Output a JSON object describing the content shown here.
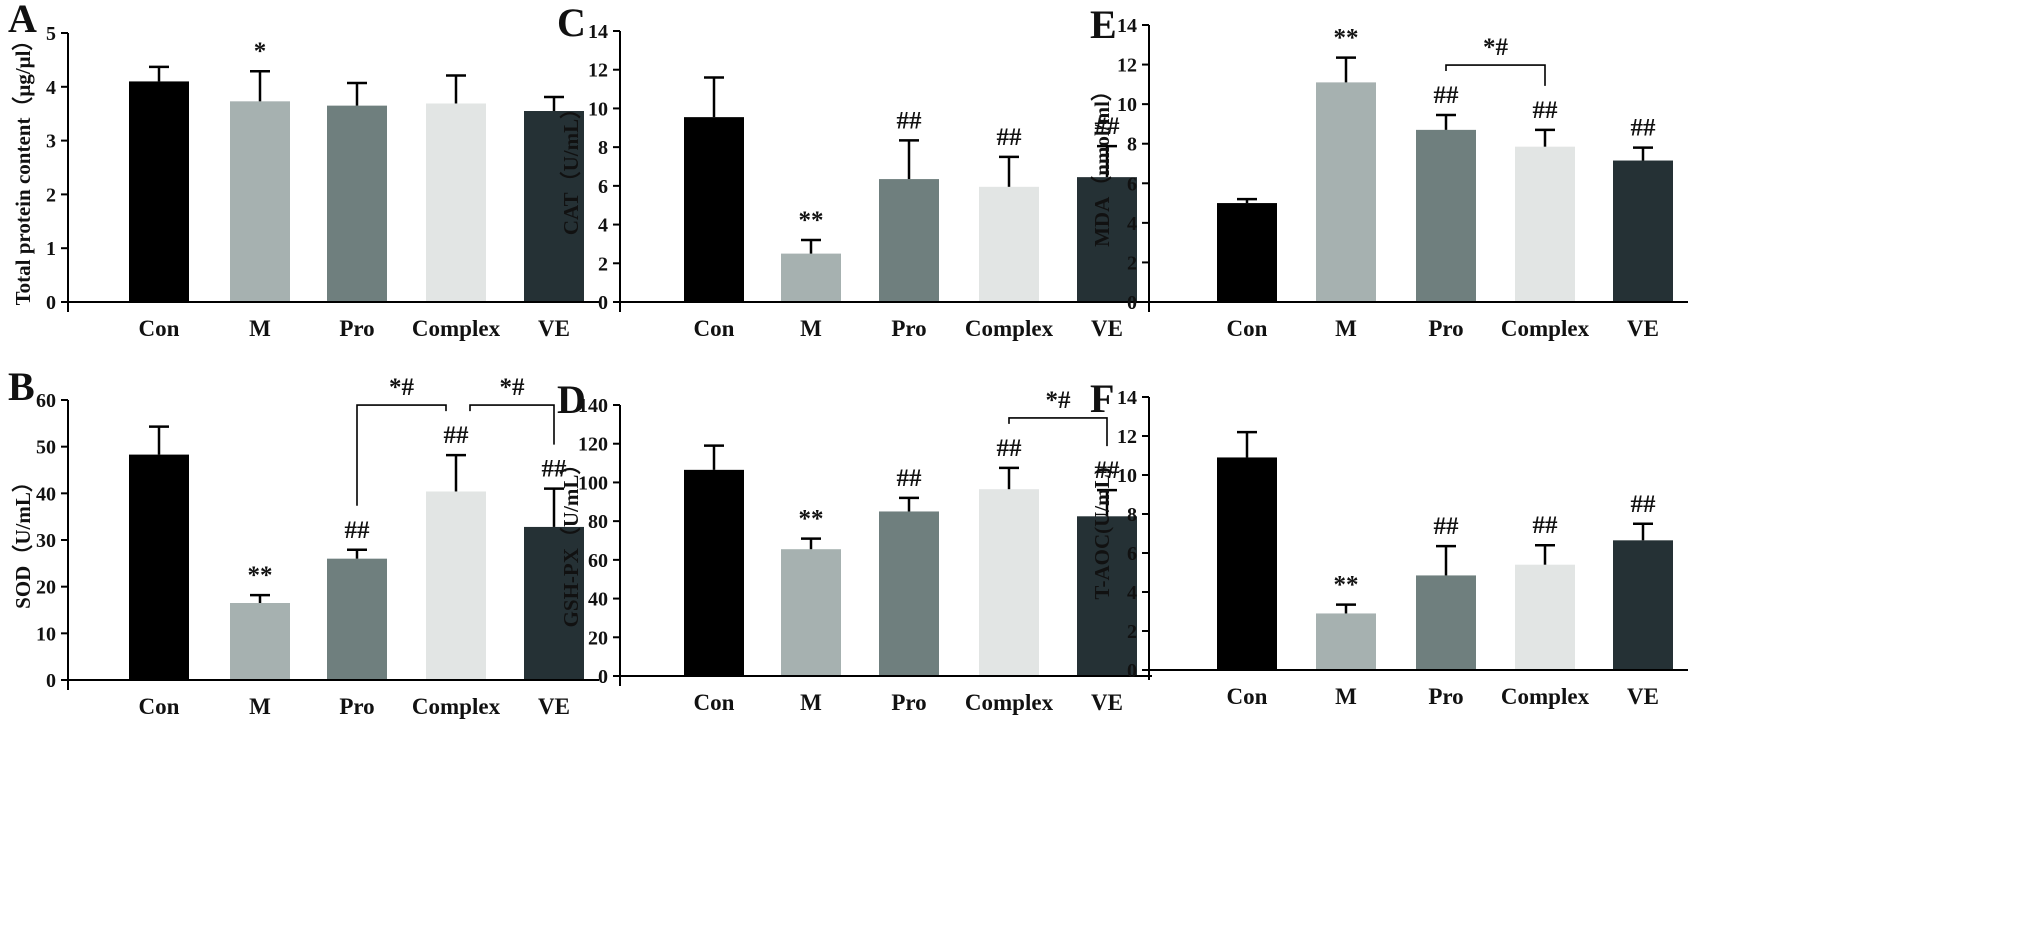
{
  "colors": [
    "#000000",
    "#a6b1b0",
    "#6f7f7e",
    "#e2e5e4",
    "#253135"
  ],
  "chart_data": [
    {
      "type": "bar",
      "letter": "A",
      "ylabel": "Total protein content（μg/μl）",
      "categories": [
        "Con",
        "M",
        "Pro",
        "Complex",
        "VE"
      ],
      "values": [
        4.1,
        3.73,
        3.65,
        3.69,
        3.55
      ],
      "errors": [
        0.27,
        0.56,
        0.42,
        0.52,
        0.26
      ],
      "labels": [
        "",
        "*",
        "",
        "",
        ""
      ],
      "ylim": [
        0,
        5
      ],
      "yticks": [
        0,
        1,
        2,
        3,
        4,
        5
      ],
      "brackets": []
    },
    {
      "type": "bar",
      "letter": "B",
      "ylabel": "SOD（U/mL）",
      "categories": [
        "Con",
        "M",
        "Pro",
        "Complex",
        "VE"
      ],
      "values": [
        48.3,
        16.5,
        26.0,
        40.4,
        32.8
      ],
      "errors": [
        6.0,
        1.7,
        1.9,
        7.8,
        8.2
      ],
      "labels": [
        "",
        "**",
        "##",
        "##",
        "##"
      ],
      "ylim": [
        0,
        60
      ],
      "yticks": [
        0,
        10,
        20,
        30,
        40,
        50,
        60
      ],
      "brackets": [
        {
          "from": 2,
          "to": 3,
          "label": "*#"
        },
        {
          "from": 3,
          "to": 4,
          "label": "*#"
        }
      ]
    },
    {
      "type": "bar",
      "letter": "C",
      "ylabel": "CAT（U/mL）",
      "categories": [
        "Con",
        "M",
        "Pro",
        "Complex",
        "VE"
      ],
      "values": [
        9.55,
        2.5,
        6.35,
        5.95,
        6.45
      ],
      "errors": [
        2.05,
        0.7,
        2.0,
        1.55,
        1.6
      ],
      "labels": [
        "",
        "**",
        "##",
        "##",
        "##"
      ],
      "ylim": [
        0,
        14
      ],
      "yticks": [
        0,
        2,
        4,
        6,
        8,
        10,
        12,
        14
      ],
      "brackets": []
    },
    {
      "type": "bar",
      "letter": "D",
      "ylabel": "GSH-PX（U/mL）",
      "categories": [
        "Con",
        "M",
        "Pro",
        "Complex",
        "VE"
      ],
      "values": [
        106.5,
        65.5,
        85.0,
        96.5,
        82.5
      ],
      "errors": [
        12.5,
        5.5,
        7.0,
        11.0,
        13.5
      ],
      "labels": [
        "",
        "**",
        "##",
        "##",
        "##"
      ],
      "ylim": [
        0,
        140
      ],
      "yticks": [
        0,
        20,
        40,
        60,
        80,
        100,
        120,
        140
      ],
      "brackets": [
        {
          "from": 3,
          "to": 4,
          "label": "*#"
        }
      ]
    },
    {
      "type": "bar",
      "letter": "E",
      "ylabel": "MDA（nmol/ml）",
      "categories": [
        "Con",
        "M",
        "Pro",
        "Complex",
        "VE"
      ],
      "values": [
        5.0,
        11.1,
        8.7,
        7.85,
        7.15
      ],
      "errors": [
        0.2,
        1.25,
        0.75,
        0.85,
        0.65
      ],
      "labels": [
        "",
        "**",
        "##",
        "##",
        "##"
      ],
      "ylim": [
        0,
        14
      ],
      "yticks": [
        0,
        2,
        4,
        6,
        8,
        10,
        12,
        14
      ],
      "brackets": [
        {
          "from": 2,
          "to": 3,
          "label": "*#"
        }
      ]
    },
    {
      "type": "bar",
      "letter": "F",
      "ylabel": "T-AOC(U/mL)",
      "categories": [
        "Con",
        "M",
        "Pro",
        "Complex",
        "VE"
      ],
      "values": [
        10.9,
        2.9,
        4.85,
        5.4,
        6.65
      ],
      "errors": [
        1.3,
        0.45,
        1.5,
        1.0,
        0.85
      ],
      "labels": [
        "",
        "**",
        "##",
        "##",
        "##"
      ],
      "ylim": [
        0,
        14
      ],
      "yticks": [
        0,
        2,
        4,
        6,
        8,
        10,
        12,
        14
      ],
      "brackets": []
    }
  ]
}
